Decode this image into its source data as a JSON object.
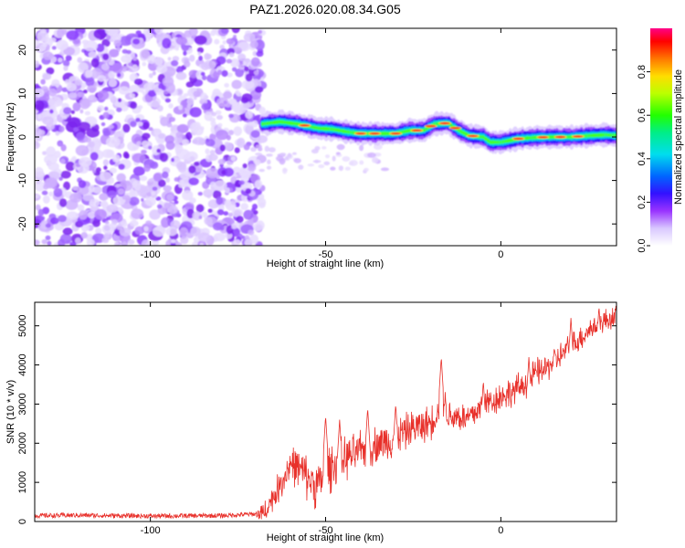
{
  "title": "PAZ1.2026.020.08.34.G05",
  "colors": {
    "snr_line": "#e8302a",
    "axis": "#000000"
  },
  "chart_data": [
    {
      "type": "heatmap",
      "xlabel": "Height of straight line (km)",
      "ylabel": "Frequency (Hz)",
      "xlim": [
        -133,
        33
      ],
      "ylim": [
        -25,
        25
      ],
      "xticks": [
        -100,
        -50,
        0
      ],
      "yticks": [
        -20,
        -10,
        0,
        10,
        20
      ],
      "xtick_labels": [
        "-100",
        "-50",
        "0"
      ],
      "ytick_labels": [
        "-20",
        "-10",
        "0",
        "10",
        "20"
      ],
      "noise_region_km": [
        -133,
        -68
      ],
      "signal_track_hz": [
        [
          -68,
          3.0
        ],
        [
          -63,
          3.5
        ],
        [
          -58,
          3.0
        ],
        [
          -55,
          2.5
        ],
        [
          -52,
          2.0
        ],
        [
          -48,
          1.8
        ],
        [
          -44,
          1.2
        ],
        [
          -40,
          0.8
        ],
        [
          -35,
          0.8
        ],
        [
          -30,
          0.8
        ],
        [
          -26,
          1.5
        ],
        [
          -22,
          1.5
        ],
        [
          -19,
          3.0
        ],
        [
          -15,
          3.2
        ],
        [
          -12,
          1.5
        ],
        [
          -9,
          0.3
        ],
        [
          -5,
          0.0
        ],
        [
          -3,
          -1.2
        ],
        [
          0,
          -1.2
        ],
        [
          5,
          -0.4
        ],
        [
          10,
          -0.1
        ],
        [
          15,
          0.0
        ],
        [
          20,
          0.0
        ],
        [
          25,
          0.3
        ],
        [
          30,
          0.5
        ],
        [
          33,
          0.3
        ]
      ],
      "colorbar": {
        "label": "Normalized spectral amplitude",
        "range": [
          0,
          1
        ],
        "ticks": [
          0.0,
          0.2,
          0.4,
          0.6,
          0.8
        ],
        "tick_labels": [
          "0.0",
          "0.2",
          "0.4",
          "0.6",
          "0.8"
        ]
      }
    },
    {
      "type": "line",
      "xlabel": "Height of straight line (km)",
      "ylabel": "SNR (10 * v/v)",
      "xlim": [
        -133,
        33
      ],
      "ylim": [
        0,
        5600
      ],
      "xticks": [
        -100,
        -50,
        0
      ],
      "yticks": [
        0,
        1000,
        2000,
        3000,
        4000,
        5000
      ],
      "xtick_labels": [
        "-100",
        "-50",
        "0"
      ],
      "ytick_labels": [
        "0",
        "1000",
        "2000",
        "3000",
        "4000",
        "5000"
      ],
      "series": [
        {
          "name": "SNR",
          "envelope": {
            "x": [
              -133,
              -120,
              -100,
              -80,
              -68,
              -65,
              -62,
              -60,
              -57,
              -55,
              -52,
              -50,
              -47,
              -45,
              -42,
              -40,
              -37,
              -35,
              -32,
              -30,
              -27,
              -25,
              -22,
              -20,
              -18,
              -17,
              -15,
              -12,
              -10,
              -7,
              -5,
              -2,
              0,
              3,
              5,
              8,
              10,
              13,
              15,
              18,
              20,
              23,
              25,
              28,
              30,
              33
            ],
            "y": [
              150,
              160,
              140,
              150,
              200,
              600,
              1100,
              1500,
              1300,
              1100,
              900,
              1300,
              1500,
              1600,
              1700,
              1800,
              1900,
              2000,
              2050,
              2200,
              2300,
              2400,
              2450,
              2550,
              2800,
              3300,
              2700,
              2700,
              2600,
              2800,
              3000,
              3100,
              3200,
              3300,
              3400,
              3600,
              3800,
              3900,
              4100,
              4300,
              4500,
              4700,
              4900,
              5000,
              5150,
              5250
            ]
          },
          "noise_amplitude": [
            [
              -133,
              60
            ],
            [
              -70,
              60
            ],
            [
              -68,
              250
            ],
            [
              -60,
              500
            ],
            [
              -50,
              650
            ],
            [
              -40,
              500
            ],
            [
              -20,
              450
            ],
            [
              0,
              400
            ],
            [
              20,
              350
            ],
            [
              33,
              300
            ]
          ],
          "peaks": [
            [
              -50,
              2700
            ],
            [
              -46,
              2600
            ],
            [
              -38,
              2900
            ],
            [
              -30,
              3000
            ],
            [
              -17,
              4200
            ],
            [
              -5,
              3600
            ],
            [
              8,
              4200
            ],
            [
              20,
              5200
            ],
            [
              28,
              5500
            ]
          ]
        }
      ]
    }
  ]
}
